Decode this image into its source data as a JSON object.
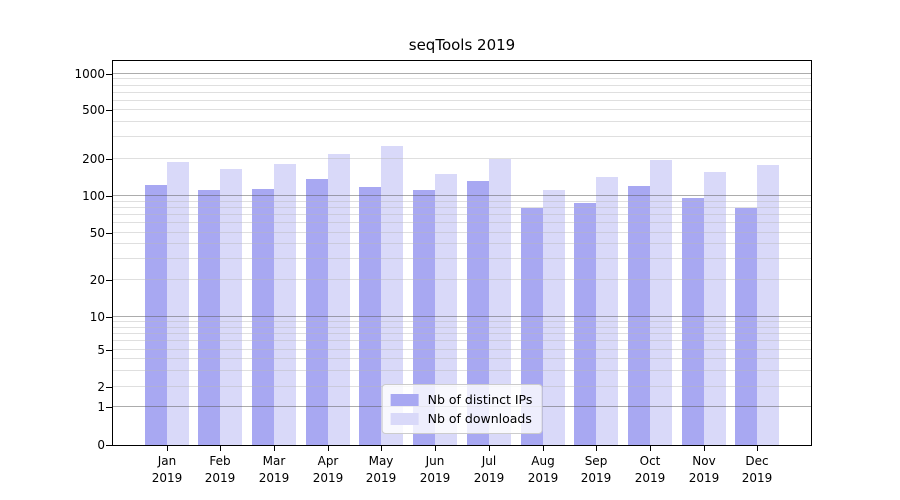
{
  "title": "seqTools 2019",
  "chart_data": {
    "type": "bar",
    "title": "seqTools 2019",
    "scale": "symlog",
    "grid": true,
    "legend_position": "lower center",
    "ylim": [
      0,
      1000
    ],
    "yticks": [
      0,
      1,
      2,
      5,
      10,
      20,
      50,
      100,
      200,
      500,
      1000
    ],
    "categories": [
      "Jan 2019",
      "Feb 2019",
      "Mar 2019",
      "Apr 2019",
      "May 2019",
      "Jun 2019",
      "Jul 2019",
      "Aug 2019",
      "Sep 2019",
      "Oct 2019",
      "Nov 2019",
      "Dec 2019"
    ],
    "series": [
      {
        "name": "Nb of distinct IPs",
        "color": "#a8a8f2",
        "values": [
          123,
          112,
          114,
          138,
          119,
          112,
          132,
          80,
          87,
          121,
          97,
          80
        ]
      },
      {
        "name": "Nb of downloads",
        "color": "#d9d9f9",
        "values": [
          190,
          166,
          183,
          221,
          255,
          152,
          200,
          112,
          142,
          198,
          157,
          180
        ]
      }
    ]
  },
  "colors": {
    "axis": "#000000",
    "major_grid": "#5a5a5a",
    "minor_grid": "#b9b9b9",
    "legend_border": "#cccccc"
  }
}
